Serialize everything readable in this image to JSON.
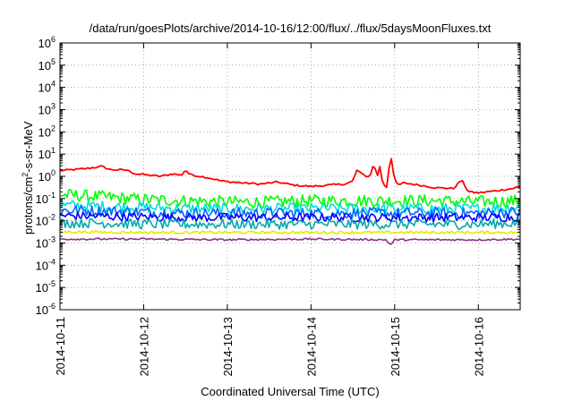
{
  "chart_data": {
    "type": "line",
    "title": "/data/run/goesPlots/archive/2014-10-16/12:00/flux/../flux/5daysMoonFluxes.txt",
    "xlabel": "Coordinated Universal Time (UTC)",
    "ylabel_main": "protons/cm",
    "ylabel_sup": "2",
    "ylabel_rest": "-s-sr-MeV",
    "x_ticks": [
      "2014-10-11",
      "2014-10-12",
      "2014-10-13",
      "2014-10-14",
      "2014-10-15",
      "2014-10-16"
    ],
    "x_range_days": [
      0,
      5.5
    ],
    "y_scale": "log",
    "ylim": [
      1e-06,
      1000000.0
    ],
    "y_tick_exponents": [
      -6,
      -5,
      -4,
      -3,
      -2,
      -1,
      0,
      1,
      2,
      3,
      4,
      5,
      6
    ],
    "y_tick_base": "10",
    "grid": true,
    "legend": "none",
    "series": [
      {
        "color": "#ff0000",
        "noise": 0.04,
        "values": [
          [
            0.0,
            1.8
          ],
          [
            0.3,
            2.2
          ],
          [
            0.5,
            2.8
          ],
          [
            0.6,
            2.0
          ],
          [
            0.8,
            1.9
          ],
          [
            0.9,
            1.3
          ],
          [
            1.0,
            1.2
          ],
          [
            1.2,
            1.0
          ],
          [
            1.35,
            1.3
          ],
          [
            1.45,
            1.1
          ],
          [
            1.5,
            2.0
          ],
          [
            1.55,
            1.2
          ],
          [
            1.75,
            0.9
          ],
          [
            1.95,
            0.6
          ],
          [
            2.2,
            0.5
          ],
          [
            2.4,
            0.45
          ],
          [
            2.6,
            0.55
          ],
          [
            2.8,
            0.4
          ],
          [
            3.0,
            0.35
          ],
          [
            3.2,
            0.4
          ],
          [
            3.4,
            0.45
          ],
          [
            3.5,
            0.6
          ],
          [
            3.55,
            2.0
          ],
          [
            3.6,
            1.3
          ],
          [
            3.7,
            0.9
          ],
          [
            3.75,
            3.5
          ],
          [
            3.8,
            1.0
          ],
          [
            3.82,
            3.0
          ],
          [
            3.85,
            0.7
          ],
          [
            3.9,
            0.25
          ],
          [
            3.92,
            0.8
          ],
          [
            3.95,
            12
          ],
          [
            3.98,
            2.0
          ],
          [
            4.0,
            0.6
          ],
          [
            4.05,
            0.4
          ],
          [
            4.1,
            0.5
          ],
          [
            4.2,
            0.45
          ],
          [
            4.3,
            0.4
          ],
          [
            4.4,
            0.35
          ],
          [
            4.5,
            0.3
          ],
          [
            4.6,
            0.3
          ],
          [
            4.7,
            0.28
          ],
          [
            4.8,
            0.7
          ],
          [
            4.88,
            0.2
          ],
          [
            5.0,
            0.18
          ],
          [
            5.1,
            0.2
          ],
          [
            5.2,
            0.22
          ],
          [
            5.3,
            0.25
          ],
          [
            5.4,
            0.28
          ],
          [
            5.5,
            0.35
          ]
        ]
      },
      {
        "color": "#00ff00",
        "noise": 0.28,
        "values": [
          [
            0,
            0.15
          ],
          [
            0.5,
            0.12
          ],
          [
            1.0,
            0.09
          ],
          [
            1.5,
            0.08
          ],
          [
            2.0,
            0.07
          ],
          [
            2.5,
            0.07
          ],
          [
            3.0,
            0.08
          ],
          [
            3.5,
            0.08
          ],
          [
            4.0,
            0.08
          ],
          [
            4.5,
            0.08
          ],
          [
            5.0,
            0.07
          ],
          [
            5.5,
            0.08
          ]
        ]
      },
      {
        "color": "#00dddd",
        "noise": 0.25,
        "values": [
          [
            0,
            0.05
          ],
          [
            0.5,
            0.045
          ],
          [
            1.0,
            0.04
          ],
          [
            1.5,
            0.035
          ],
          [
            2.0,
            0.035
          ],
          [
            2.5,
            0.035
          ],
          [
            3.0,
            0.035
          ],
          [
            3.5,
            0.035
          ],
          [
            4.0,
            0.035
          ],
          [
            4.5,
            0.035
          ],
          [
            5.0,
            0.035
          ],
          [
            5.5,
            0.04
          ]
        ]
      },
      {
        "color": "#0066ff",
        "noise": 0.25,
        "values": [
          [
            0,
            0.03
          ],
          [
            0.5,
            0.028
          ],
          [
            1.0,
            0.025
          ],
          [
            1.5,
            0.022
          ],
          [
            2.0,
            0.022
          ],
          [
            2.5,
            0.022
          ],
          [
            3.0,
            0.022
          ],
          [
            3.5,
            0.022
          ],
          [
            4.0,
            0.022
          ],
          [
            4.5,
            0.022
          ],
          [
            5.0,
            0.022
          ],
          [
            5.5,
            0.025
          ]
        ]
      },
      {
        "color": "#0000ff",
        "noise": 0.2,
        "values": [
          [
            0,
            0.017
          ],
          [
            0.5,
            0.016
          ],
          [
            1.0,
            0.015
          ],
          [
            1.5,
            0.014
          ],
          [
            2.0,
            0.014
          ],
          [
            2.5,
            0.014
          ],
          [
            3.0,
            0.014
          ],
          [
            3.5,
            0.014
          ],
          [
            4.0,
            0.014
          ],
          [
            4.5,
            0.014
          ],
          [
            5.0,
            0.014
          ],
          [
            5.5,
            0.015
          ]
        ]
      },
      {
        "color": "#00aaaa",
        "noise": 0.22,
        "values": [
          [
            0,
            0.008
          ],
          [
            0.5,
            0.008
          ],
          [
            1.0,
            0.007
          ],
          [
            1.5,
            0.007
          ],
          [
            2.0,
            0.007
          ],
          [
            2.5,
            0.007
          ],
          [
            3.0,
            0.007
          ],
          [
            3.5,
            0.007
          ],
          [
            4.0,
            0.007
          ],
          [
            4.5,
            0.007
          ],
          [
            5.0,
            0.007
          ],
          [
            5.5,
            0.008
          ]
        ]
      },
      {
        "color": "#e8e800",
        "noise": 0.06,
        "values": [
          [
            0,
            0.0032
          ],
          [
            1.0,
            0.003
          ],
          [
            2.0,
            0.003
          ],
          [
            3.0,
            0.003
          ],
          [
            4.0,
            0.003
          ],
          [
            5.0,
            0.003
          ],
          [
            5.5,
            0.003
          ]
        ]
      },
      {
        "color": "#883388",
        "noise": 0.04,
        "values": [
          [
            0,
            0.0015
          ],
          [
            1.0,
            0.0015
          ],
          [
            2.0,
            0.0014
          ],
          [
            3.0,
            0.0015
          ],
          [
            3.9,
            0.0014
          ],
          [
            3.95,
            0.0008
          ],
          [
            4.0,
            0.0014
          ],
          [
            5.0,
            0.0014
          ],
          [
            5.5,
            0.0015
          ]
        ]
      }
    ]
  }
}
